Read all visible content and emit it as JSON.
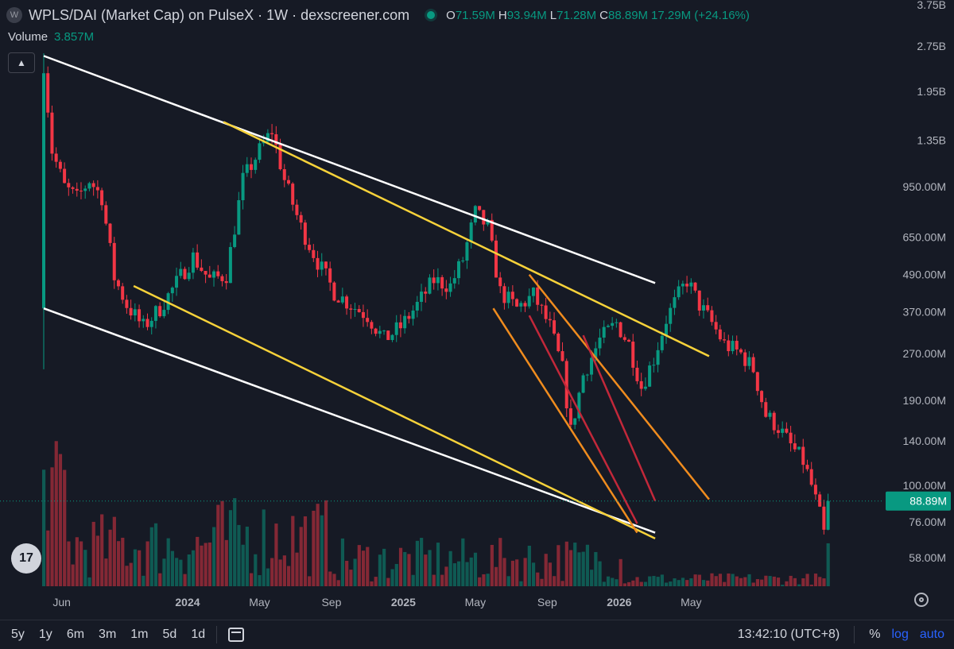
{
  "header": {
    "logo": "W",
    "title": "WPLS/DAI (Market Cap) on PulseX · 1W · dexscreener.com",
    "ohlc": [
      {
        "k": "O",
        "v": "71.59M"
      },
      {
        "k": "H",
        "v": "93.94M"
      },
      {
        "k": "L",
        "v": "71.28M"
      },
      {
        "k": "C",
        "v": "88.89M"
      },
      {
        "k": "",
        "v": "17.29M (+24.16%)"
      }
    ],
    "volume_label": "Volume",
    "volume_value": "3.857M"
  },
  "bottom_bar": {
    "ranges": [
      "5y",
      "1y",
      "6m",
      "3m",
      "1m",
      "5d",
      "1d"
    ],
    "time": "13:42:10 (UTC+8)",
    "percent": "%",
    "log": "log",
    "auto": "auto"
  },
  "tv_logo": "17",
  "colors": {
    "up": "#089981",
    "down": "#f23645",
    "white_line": "#ffffff",
    "yellow_line": "#f7d23a",
    "orange_line": "#f08c1e",
    "red_line": "#c2283a"
  },
  "chart_data": {
    "type": "candlestick",
    "scale": "log",
    "y_ticks": [
      "3.75B",
      "2.75B",
      "1.95B",
      "1.35B",
      "950.00M",
      "650.00M",
      "490.00M",
      "370.00M",
      "270.00M",
      "190.00M",
      "140.00M",
      "100.00M",
      "76.00M",
      "58.00M"
    ],
    "x_ticks": [
      "Jun",
      "2024",
      "May",
      "Sep",
      "2025",
      "May",
      "Sep",
      "2026",
      "May"
    ],
    "last_price_label": "88.89M",
    "last_price": 88890000,
    "close_path": [
      [
        0,
        2400000000
      ],
      [
        2,
        1250000000
      ],
      [
        5,
        950000000
      ],
      [
        8,
        870000000
      ],
      [
        11,
        1000000000
      ],
      [
        14,
        880000000
      ],
      [
        17,
        480000000
      ],
      [
        20,
        390000000
      ],
      [
        24,
        330000000
      ],
      [
        28,
        380000000
      ],
      [
        32,
        460000000
      ],
      [
        36,
        560000000
      ],
      [
        40,
        470000000
      ],
      [
        44,
        490000000
      ],
      [
        48,
        1000000000
      ],
      [
        52,
        1250000000
      ],
      [
        55,
        1450000000
      ],
      [
        58,
        1000000000
      ],
      [
        62,
        700000000
      ],
      [
        66,
        540000000
      ],
      [
        70,
        430000000
      ],
      [
        74,
        390000000
      ],
      [
        78,
        360000000
      ],
      [
        82,
        300000000
      ],
      [
        86,
        330000000
      ],
      [
        90,
        390000000
      ],
      [
        94,
        470000000
      ],
      [
        98,
        450000000
      ],
      [
        101,
        550000000
      ],
      [
        104,
        780000000
      ],
      [
        107,
        700000000
      ],
      [
        110,
        430000000
      ],
      [
        114,
        380000000
      ],
      [
        118,
        420000000
      ],
      [
        122,
        330000000
      ],
      [
        125,
        240000000
      ],
      [
        127,
        150000000
      ],
      [
        130,
        230000000
      ],
      [
        134,
        300000000
      ],
      [
        138,
        340000000
      ],
      [
        141,
        290000000
      ],
      [
        144,
        210000000
      ],
      [
        147,
        260000000
      ],
      [
        150,
        350000000
      ],
      [
        153,
        420000000
      ],
      [
        155,
        470000000
      ],
      [
        158,
        390000000
      ],
      [
        161,
        340000000
      ],
      [
        164,
        290000000
      ],
      [
        168,
        270000000
      ],
      [
        171,
        240000000
      ],
      [
        174,
        170000000
      ],
      [
        177,
        155000000
      ],
      [
        180,
        135000000
      ],
      [
        183,
        120000000
      ],
      [
        185,
        100000000
      ],
      [
        187,
        80000000
      ],
      [
        188,
        71590000
      ],
      [
        189,
        88890000
      ]
    ],
    "volume": {
      "max_bar": 13200000,
      "last": 3857000
    },
    "trendlines": [
      {
        "color": "white",
        "from": [
          "2023-05",
          "2.55B"
        ],
        "to": [
          "2026-03",
          "460.00M"
        ]
      },
      {
        "color": "white",
        "from": [
          "2023-05",
          "380.00M"
        ],
        "to": [
          "2026-03",
          "70.00M"
        ]
      },
      {
        "color": "yellow",
        "from": [
          "2024-03",
          "1.55B"
        ],
        "to": [
          "2026-06",
          "265.00M"
        ]
      },
      {
        "color": "yellow",
        "from": [
          "2023-10",
          "450.00M"
        ],
        "to": [
          "2026-03",
          "67.00M"
        ]
      },
      {
        "color": "orange",
        "from": [
          "2025-06",
          "380.00M"
        ],
        "to": [
          "2026-02",
          "70.00M"
        ]
      },
      {
        "color": "orange",
        "from": [
          "2025-08",
          "490.00M"
        ],
        "to": [
          "2026-06",
          "90.00M"
        ]
      },
      {
        "color": "red",
        "from": [
          "2025-08",
          "360.00M"
        ],
        "to": [
          "2026-02",
          "75.00M"
        ]
      },
      {
        "color": "red",
        "from": [
          "2025-11",
          "310.00M"
        ],
        "to": [
          "2026-03",
          "89.00M"
        ]
      }
    ]
  }
}
